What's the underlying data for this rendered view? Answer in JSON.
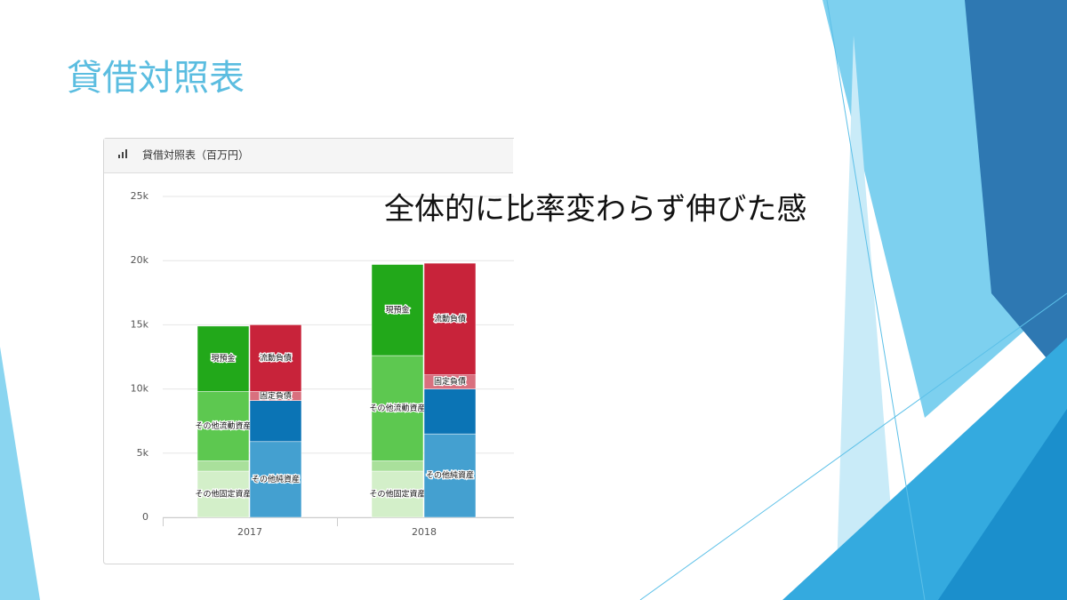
{
  "slide": {
    "title": "貸借対照表",
    "note": "全体的に比率変わらず伸びた感"
  },
  "chart_data": {
    "type": "bar",
    "title": "貸借対照表（百万円）",
    "categories": [
      "2017",
      "2018"
    ],
    "stacks": [
      {
        "series": [
          {
            "name": "その他固定資産",
            "color": "#d3efc9",
            "values": [
              3600,
              3600
            ]
          },
          {
            "color": "#a9e09b",
            "values": [
              800,
              800
            ]
          },
          {
            "name": "その他流動資産",
            "color": "#5dc850",
            "values": [
              5400,
              8200
            ]
          },
          {
            "name": "現預金",
            "color": "#22a81a",
            "values": [
              5100,
              7100
            ]
          }
        ]
      },
      {
        "series": [
          {
            "name": "その他純資産",
            "color": "#44a0d0",
            "values": [
              5900,
              6500
            ]
          },
          {
            "color": "#0b74b5",
            "values": [
              3200,
              3500
            ]
          },
          {
            "name": "固定負債",
            "color": "#d9707e",
            "values": [
              700,
              1100
            ]
          },
          {
            "name": "流動負債",
            "color": "#c8233a",
            "values": [
              5200,
              8700
            ]
          }
        ]
      }
    ],
    "ylim": [
      0,
      25000
    ],
    "yticks": [
      0,
      {
        "value": 5000,
        "label": "5k"
      },
      {
        "value": 10000,
        "label": "10k"
      },
      {
        "value": 15000,
        "label": "15k"
      },
      {
        "value": 20000,
        "label": "20k"
      },
      {
        "value": 25000,
        "label": "25k"
      }
    ],
    "grid": true
  }
}
